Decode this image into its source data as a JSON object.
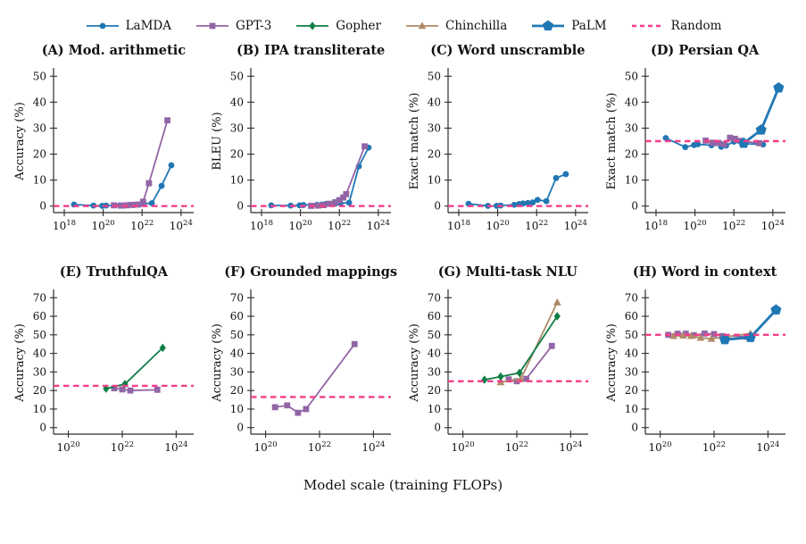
{
  "figure": {
    "xlabel": "Model scale (training FLOPs)",
    "background": "#ffffff",
    "axis_color": "#2b2b2b"
  },
  "legend": {
    "items": [
      {
        "name": "LaMDA",
        "marker": "circle",
        "color": "#2077b4",
        "dashed": false
      },
      {
        "name": "GPT-3",
        "marker": "square",
        "color": "#9265a5",
        "dashed": false
      },
      {
        "name": "Gopher",
        "marker": "diamond",
        "color": "#0e7e44",
        "dashed": false
      },
      {
        "name": "Chinchilla",
        "marker": "triangle",
        "color": "#b08a68",
        "dashed": false
      },
      {
        "name": "PaLM",
        "marker": "pentagon",
        "color": "#1f77b4",
        "dashed": false
      },
      {
        "name": "Random",
        "marker": "none",
        "color": "#f43e8a",
        "dashed": true
      }
    ]
  },
  "chart_data": [
    {
      "type": "line",
      "panel_label": "A",
      "title": "(A) Mod. arithmetic",
      "ylabel": "Accuracy (%)",
      "ylim": [
        0,
        50
      ],
      "yticks": [
        0,
        10,
        20,
        30,
        40,
        50
      ],
      "xticks_exponents": [
        18,
        20,
        22,
        24
      ],
      "xlim_exponents": [
        17.45,
        24.65
      ],
      "random_baseline": 0,
      "series": [
        {
          "name": "LaMDA",
          "x_log10_flops": [
            18.5,
            19.5,
            19.95,
            20.15,
            20.85,
            21.1,
            21.3,
            21.55,
            21.8,
            22.05,
            22.5,
            23.0,
            23.5
          ],
          "y": [
            0.6,
            0.2,
            0.1,
            0.2,
            0.3,
            0.2,
            0.4,
            0.4,
            0.6,
            1.0,
            1.1,
            7.8,
            15.7
          ]
        },
        {
          "name": "GPT-3",
          "x_log10_flops": [
            20.55,
            20.9,
            21.2,
            21.5,
            21.8,
            22.05,
            22.35,
            23.3
          ],
          "y": [
            0.3,
            0.2,
            0.3,
            0.5,
            0.6,
            1.7,
            8.8,
            33.0
          ]
        }
      ]
    },
    {
      "type": "line",
      "panel_label": "B",
      "title": "(B) IPA transliterate",
      "ylabel": "BLEU (%)",
      "ylim": [
        0,
        50
      ],
      "yticks": [
        0,
        10,
        20,
        30,
        40,
        50
      ],
      "xticks_exponents": [
        18,
        20,
        22,
        24
      ],
      "xlim_exponents": [
        17.45,
        24.65
      ],
      "random_baseline": 0,
      "series": [
        {
          "name": "LaMDA",
          "x_log10_flops": [
            18.5,
            19.5,
            19.95,
            20.15,
            20.85,
            21.1,
            21.3,
            21.55,
            21.8,
            22.05,
            22.5,
            23.0,
            23.5
          ],
          "y": [
            0.3,
            0.2,
            0.3,
            0.4,
            0.5,
            0.6,
            0.8,
            0.9,
            1.0,
            1.1,
            1.3,
            15.3,
            22.5
          ]
        },
        {
          "name": "GPT-3",
          "x_log10_flops": [
            20.55,
            20.9,
            21.2,
            21.5,
            21.8,
            22.0,
            22.2,
            22.35,
            23.3
          ],
          "y": [
            0.1,
            0.2,
            0.4,
            0.9,
            1.5,
            2.3,
            3.3,
            4.6,
            23.0
          ]
        }
      ]
    },
    {
      "type": "line",
      "panel_label": "C",
      "title": "(C) Word unscramble",
      "ylabel": "Exact match (%)",
      "ylim": [
        0,
        50
      ],
      "yticks": [
        0,
        10,
        20,
        30,
        40,
        50
      ],
      "xticks_exponents": [
        18,
        20,
        22,
        24
      ],
      "xlim_exponents": [
        17.45,
        24.65
      ],
      "random_baseline": 0,
      "series": [
        {
          "name": "LaMDA",
          "x_log10_flops": [
            18.5,
            19.5,
            19.95,
            20.15,
            20.85,
            21.1,
            21.3,
            21.55,
            21.8,
            22.05,
            22.5,
            23.0,
            23.5
          ],
          "y": [
            0.9,
            0.1,
            0.1,
            0.2,
            0.5,
            0.8,
            1.0,
            1.2,
            1.4,
            2.4,
            1.9,
            10.8,
            12.3
          ]
        }
      ]
    },
    {
      "type": "line",
      "panel_label": "D",
      "title": "(D) Persian QA",
      "ylabel": "Exact match (%)",
      "ylim": [
        0,
        50
      ],
      "yticks": [
        0,
        10,
        20,
        30,
        40,
        50
      ],
      "xticks_exponents": [
        18,
        20,
        22,
        24
      ],
      "xlim_exponents": [
        17.45,
        24.65
      ],
      "random_baseline": 25,
      "series": [
        {
          "name": "LaMDA",
          "x_log10_flops": [
            18.5,
            19.5,
            19.95,
            20.15,
            20.85,
            21.1,
            21.35,
            21.6,
            22.0,
            22.5,
            23.5
          ],
          "y": [
            26.2,
            22.7,
            23.5,
            23.8,
            23.4,
            24.2,
            22.8,
            23.3,
            24.8,
            24.0,
            23.7
          ]
        },
        {
          "name": "GPT-3",
          "x_log10_flops": [
            20.55,
            20.9,
            21.2,
            21.5,
            21.8,
            22.05,
            22.35,
            23.3
          ],
          "y": [
            25.2,
            24.4,
            24.3,
            23.8,
            26.3,
            25.9,
            25.1,
            24.2
          ]
        },
        {
          "name": "PaLM",
          "x_log10_flops": [
            22.5,
            23.4,
            24.3
          ],
          "y": [
            24.2,
            29.3,
            45.5
          ]
        }
      ]
    },
    {
      "type": "line",
      "panel_label": "E",
      "title": "(E) TruthfulQA",
      "ylabel": "Accuracy (%)",
      "ylim": [
        0,
        70
      ],
      "yticks": [
        0,
        10,
        20,
        30,
        40,
        50,
        60,
        70
      ],
      "xticks_exponents": [
        20,
        22,
        24
      ],
      "xlim_exponents": [
        19.45,
        24.65
      ],
      "random_baseline": 22.5,
      "series": [
        {
          "name": "GPT-3",
          "x_log10_flops": [
            21.7,
            22.0,
            22.3,
            23.3
          ],
          "y": [
            21.2,
            20.6,
            20.0,
            20.4
          ]
        },
        {
          "name": "Gopher",
          "x_log10_flops": [
            21.4,
            22.1,
            23.5
          ],
          "y": [
            21.0,
            23.5,
            43.0
          ]
        }
      ]
    },
    {
      "type": "line",
      "panel_label": "F",
      "title": "(F) Grounded mappings",
      "ylabel": "Accuracy (%)",
      "ylim": [
        0,
        70
      ],
      "yticks": [
        0,
        10,
        20,
        30,
        40,
        50,
        60,
        70
      ],
      "xticks_exponents": [
        20,
        22,
        24
      ],
      "xlim_exponents": [
        19.45,
        24.65
      ],
      "random_baseline": 16.5,
      "series": [
        {
          "name": "GPT-3",
          "x_log10_flops": [
            20.35,
            20.8,
            21.2,
            21.5,
            23.3
          ],
          "y": [
            11.0,
            12.0,
            8.0,
            10.0,
            45.0
          ]
        }
      ]
    },
    {
      "type": "line",
      "panel_label": "G",
      "title": "(G) Multi-task NLU",
      "ylabel": "Accuracy (%)",
      "ylim": [
        0,
        70
      ],
      "yticks": [
        0,
        10,
        20,
        30,
        40,
        50,
        60,
        70
      ],
      "xticks_exponents": [
        20,
        22,
        24
      ],
      "xlim_exponents": [
        19.45,
        24.65
      ],
      "random_baseline": 25,
      "series": [
        {
          "name": "GPT-3",
          "x_log10_flops": [
            21.7,
            22.0,
            22.35,
            23.3
          ],
          "y": [
            26.0,
            25.0,
            26.3,
            44.0
          ]
        },
        {
          "name": "Chinchilla",
          "x_log10_flops": [
            21.4,
            22.15,
            23.5
          ],
          "y": [
            24.5,
            26.2,
            67.5
          ]
        },
        {
          "name": "Gopher",
          "x_log10_flops": [
            20.8,
            21.4,
            22.1,
            23.5
          ],
          "y": [
            25.8,
            27.5,
            29.5,
            60.0
          ]
        }
      ]
    },
    {
      "type": "line",
      "panel_label": "H",
      "title": "(H) Word in context",
      "ylabel": "Accuracy (%)",
      "ylim": [
        0,
        70
      ],
      "yticks": [
        0,
        10,
        20,
        30,
        40,
        50,
        60,
        70
      ],
      "xticks_exponents": [
        20,
        22,
        24
      ],
      "xlim_exponents": [
        19.45,
        24.65
      ],
      "random_baseline": 50,
      "series": [
        {
          "name": "GPT-3",
          "x_log10_flops": [
            20.3,
            20.65,
            20.95,
            21.25,
            21.65,
            22.0,
            22.3,
            23.2
          ],
          "y": [
            50.0,
            50.6,
            50.6,
            49.8,
            50.7,
            50.4,
            49.3,
            49.0
          ]
        },
        {
          "name": "Chinchilla",
          "x_log10_flops": [
            20.5,
            20.85,
            21.15,
            21.5,
            21.9,
            23.35
          ],
          "y": [
            49.4,
            49.6,
            49.4,
            48.4,
            47.9,
            50.7
          ]
        },
        {
          "name": "PaLM",
          "x_log10_flops": [
            22.4,
            23.35,
            24.3
          ],
          "y": [
            47.4,
            48.6,
            63.4
          ]
        }
      ]
    }
  ]
}
